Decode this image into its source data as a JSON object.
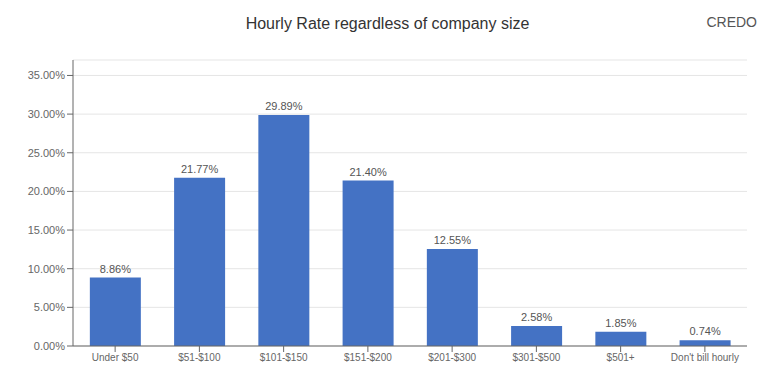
{
  "chart_data": {
    "type": "bar",
    "title": "Hourly Rate regardless of company size",
    "categories": [
      "Under $50",
      "$51-$100",
      "$101-$150",
      "$151-$200",
      "$201-$300",
      "$301-$500",
      "$501+",
      "Don't bill hourly"
    ],
    "values": [
      8.86,
      21.77,
      29.89,
      21.4,
      12.55,
      2.58,
      1.85,
      0.74
    ],
    "value_labels": [
      "8.86%",
      "21.77%",
      "29.89%",
      "21.40%",
      "12.55%",
      "2.58%",
      "1.85%",
      "0.74%"
    ],
    "data_labels": true,
    "color": "#4472C4",
    "ylim": [
      0,
      37
    ],
    "yticks": [
      {
        "value": 0,
        "label": "0.00%"
      },
      {
        "value": 5,
        "label": "5.00%"
      },
      {
        "value": 10,
        "label": "10.00%"
      },
      {
        "value": 15,
        "label": "15.00%"
      },
      {
        "value": 20,
        "label": "20.00%"
      },
      {
        "value": 25,
        "label": "25.00%"
      },
      {
        "value": 30,
        "label": "30.00%"
      },
      {
        "value": 35,
        "label": "35.00%"
      }
    ],
    "grid": true,
    "annotations": [
      {
        "text": "CREDO"
      }
    ]
  }
}
